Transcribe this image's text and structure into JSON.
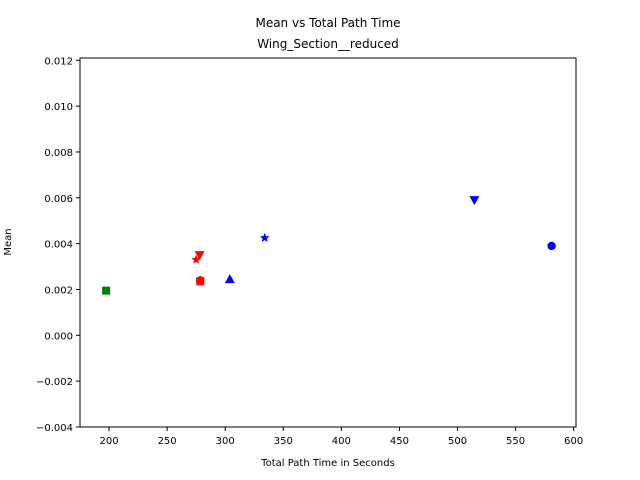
{
  "chart_data": {
    "type": "scatter",
    "title": "Mean vs Total Path Time",
    "subtitle": "Wing_Section__reduced",
    "xlabel": "Total Path Time in Seconds",
    "ylabel": "Mean",
    "xlim": [
      175,
      602
    ],
    "ylim": [
      -0.004,
      0.0121
    ],
    "x_ticks": [
      "200",
      "250",
      "300",
      "350",
      "400",
      "450",
      "500",
      "550",
      "600"
    ],
    "y_ticks": [
      "−0.004",
      "−0.002",
      "0.000",
      "0.002",
      "0.004",
      "0.006",
      "0.008",
      "0.010",
      "0.012"
    ],
    "grid": false,
    "points": [
      {
        "x": 197.5,
        "y": 0.00195,
        "color": "#008000",
        "marker": "square"
      },
      {
        "x": 278.5,
        "y": 0.0024,
        "color": "#ff0000",
        "marker": "circle"
      },
      {
        "x": 278.5,
        "y": 0.00236,
        "color": "#ff0000",
        "marker": "square"
      },
      {
        "x": 278.0,
        "y": 0.0035,
        "color": "#ff0000",
        "marker": "triangle-down"
      },
      {
        "x": 275.0,
        "y": 0.0033,
        "color": "#ff0000",
        "marker": "star"
      },
      {
        "x": 304.0,
        "y": 0.00245,
        "color": "#0000ff",
        "marker": "triangle-up"
      },
      {
        "x": 334.0,
        "y": 0.00425,
        "color": "#0000ff",
        "marker": "star"
      },
      {
        "x": 514.5,
        "y": 0.0059,
        "color": "#0000ff",
        "marker": "triangle-down"
      },
      {
        "x": 581.0,
        "y": 0.0039,
        "color": "#0000ff",
        "marker": "circle"
      }
    ]
  }
}
